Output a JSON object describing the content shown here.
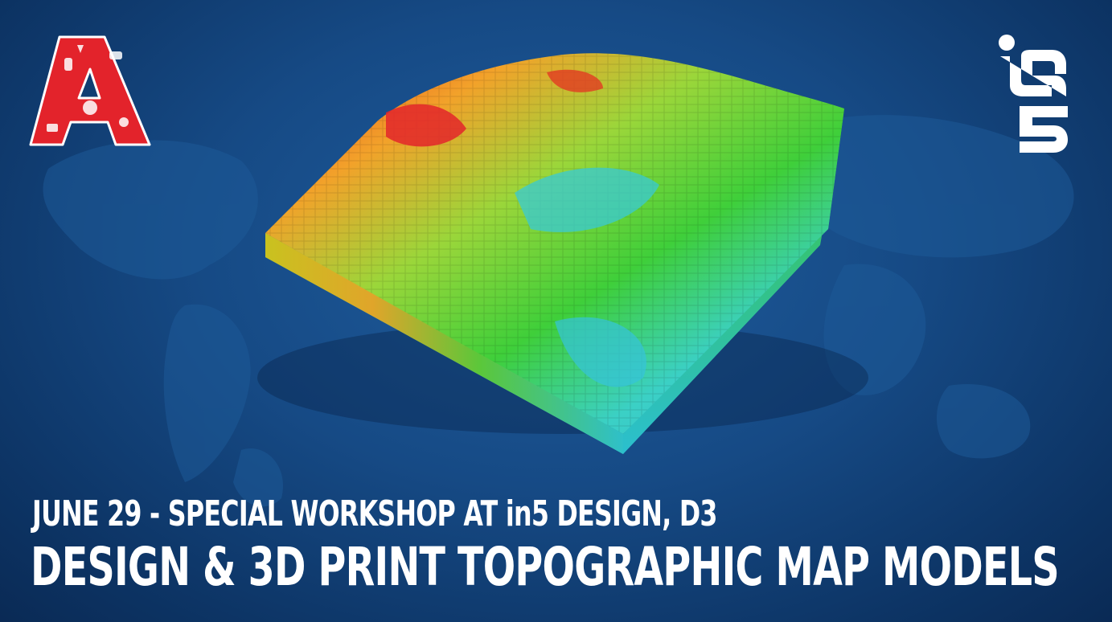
{
  "banner": {
    "subtitle": "JUNE 29 - SPECIAL WORKSHOP AT  in5 DESIGN, D3",
    "title": "DESIGN & 3D PRINT TOPOGRAPHIC MAP MODELS"
  },
  "logos": {
    "left_icon": "maker-letter-a-logo",
    "right_text": "in5",
    "right_icon": "in5-logo"
  },
  "colors": {
    "background": "#164a85",
    "left_logo": "#e3232b",
    "text": "#ffffff",
    "terrain_high": "#d7262b",
    "terrain_mid": "#3fcf3a",
    "terrain_low": "#36c9d8"
  },
  "illustration": {
    "icon": "voxel-topographic-map-icon"
  }
}
